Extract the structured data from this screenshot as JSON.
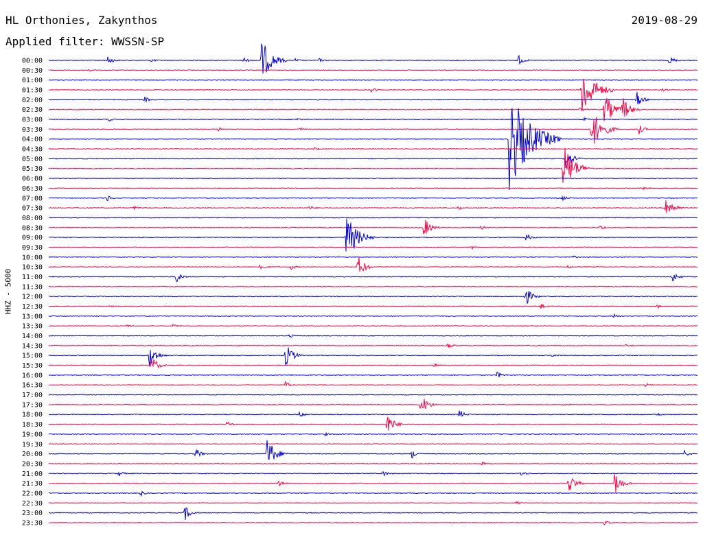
{
  "header": {
    "station": "HL Orthonies, Zakynthos",
    "date": "2019-08-29",
    "filter": "Applied filter: WWSSN-SP",
    "channel": "HHZ - 5000"
  },
  "colors": {
    "trace_a": "#0000e0",
    "trace_b": "#ff0044"
  },
  "chart_data": {
    "type": "line",
    "title": "HL Orthonies, Zakynthos",
    "date": "2019-08-29",
    "ylabel": "HHZ - 5000",
    "row_labels": [
      "00:00",
      "00:30",
      "01:00",
      "01:30",
      "02:00",
      "02:30",
      "03:00",
      "03:30",
      "04:00",
      "04:30",
      "05:00",
      "05:30",
      "06:00",
      "06:30",
      "07:00",
      "07:30",
      "08:00",
      "08:30",
      "09:00",
      "09:30",
      "10:00",
      "10:30",
      "11:00",
      "11:30",
      "12:00",
      "12:30",
      "13:00",
      "13:30",
      "14:00",
      "14:30",
      "15:00",
      "15:30",
      "16:00",
      "16:30",
      "17:00",
      "17:30",
      "18:00",
      "18:30",
      "19:00",
      "19:30",
      "20:00",
      "20:30",
      "21:00",
      "21:30",
      "22:00",
      "22:30",
      "23:00",
      "23:30"
    ],
    "trace_colors": [
      "#0000e0",
      "#ff0044"
    ],
    "events": [
      {
        "row": 0,
        "min": 5.5,
        "amp": 0.5
      },
      {
        "row": 0,
        "min": 9.5,
        "amp": 0.2
      },
      {
        "row": 0,
        "min": 18,
        "amp": 0.35
      },
      {
        "row": 0,
        "min": 19.7,
        "amp": 2.2
      },
      {
        "row": 0,
        "min": 22.8,
        "amp": 0.2
      },
      {
        "row": 0,
        "min": 25,
        "amp": 0.2
      },
      {
        "row": 0,
        "min": 43.4,
        "amp": 0.6
      },
      {
        "row": 0,
        "min": 57.4,
        "amp": 0.5
      },
      {
        "row": 1,
        "min": 3.7,
        "amp": 0.2
      },
      {
        "row": 3,
        "min": 29.8,
        "amp": 0.4
      },
      {
        "row": 3,
        "min": 49.3,
        "amp": 3.0
      },
      {
        "row": 3,
        "min": 56.8,
        "amp": 0.2
      },
      {
        "row": 4,
        "min": 8.9,
        "amp": 0.3
      },
      {
        "row": 4,
        "min": 54.4,
        "amp": 0.8
      },
      {
        "row": 5,
        "min": 49.1,
        "amp": 0.3
      },
      {
        "row": 5,
        "min": 51.4,
        "amp": 1.8
      },
      {
        "row": 5,
        "min": 53.1,
        "amp": 1.3
      },
      {
        "row": 6,
        "min": 5.6,
        "amp": 0.2
      },
      {
        "row": 6,
        "min": 23,
        "amp": 0.15
      },
      {
        "row": 6,
        "min": 49.5,
        "amp": 0.2
      },
      {
        "row": 7,
        "min": 15.7,
        "amp": 0.25
      },
      {
        "row": 7,
        "min": 23.2,
        "amp": 0.2
      },
      {
        "row": 7,
        "min": 50.2,
        "amp": 2.3
      },
      {
        "row": 7,
        "min": 54.6,
        "amp": 0.5
      },
      {
        "row": 8,
        "min": 42.6,
        "amp": 5.5
      },
      {
        "row": 9,
        "min": 24.6,
        "amp": 0.15
      },
      {
        "row": 10,
        "min": 47.8,
        "amp": 1.2
      },
      {
        "row": 11,
        "min": 47.6,
        "amp": 2.6
      },
      {
        "row": 13,
        "min": 55,
        "amp": 0.2
      },
      {
        "row": 14,
        "min": 5.4,
        "amp": 0.35
      },
      {
        "row": 14,
        "min": 47.5,
        "amp": 0.3
      },
      {
        "row": 15,
        "min": 7.9,
        "amp": 0.2
      },
      {
        "row": 15,
        "min": 24.1,
        "amp": 0.25
      },
      {
        "row": 15,
        "min": 37.9,
        "amp": 0.2
      },
      {
        "row": 15,
        "min": 57.1,
        "amp": 1.3
      },
      {
        "row": 17,
        "min": 34.7,
        "amp": 1.1
      },
      {
        "row": 17,
        "min": 40,
        "amp": 0.2
      },
      {
        "row": 17,
        "min": 51,
        "amp": 0.3
      },
      {
        "row": 18,
        "min": 27.5,
        "amp": 2.6
      },
      {
        "row": 18,
        "min": 44.1,
        "amp": 0.5
      },
      {
        "row": 19,
        "min": 39.1,
        "amp": 0.2
      },
      {
        "row": 20,
        "min": 48.5,
        "amp": 0.15
      },
      {
        "row": 21,
        "min": 19.5,
        "amp": 0.45
      },
      {
        "row": 21,
        "min": 22.4,
        "amp": 0.35
      },
      {
        "row": 21,
        "min": 28.6,
        "amp": 1.2
      },
      {
        "row": 21,
        "min": 48,
        "amp": 0.2
      },
      {
        "row": 22,
        "min": 11.8,
        "amp": 0.6
      },
      {
        "row": 22,
        "min": 57.7,
        "amp": 0.6
      },
      {
        "row": 24,
        "min": 44.1,
        "amp": 1.0
      },
      {
        "row": 25,
        "min": 5.6,
        "amp": 0.15
      },
      {
        "row": 25,
        "min": 45.5,
        "amp": 0.3
      },
      {
        "row": 25,
        "min": 56.3,
        "amp": 0.2
      },
      {
        "row": 26,
        "min": 52.3,
        "amp": 0.2
      },
      {
        "row": 27,
        "min": 7.2,
        "amp": 0.2
      },
      {
        "row": 27,
        "min": 11.5,
        "amp": 0.2
      },
      {
        "row": 28,
        "min": 22.3,
        "amp": 0.2
      },
      {
        "row": 29,
        "min": 36.9,
        "amp": 0.4
      },
      {
        "row": 29,
        "min": 53.4,
        "amp": 0.2
      },
      {
        "row": 30,
        "min": 9.3,
        "amp": 1.3
      },
      {
        "row": 30,
        "min": 21.9,
        "amp": 1.3
      },
      {
        "row": 30,
        "min": 46.6,
        "amp": 0.2
      },
      {
        "row": 31,
        "min": 9.5,
        "amp": 1.0
      },
      {
        "row": 31,
        "min": 35.6,
        "amp": 0.2
      },
      {
        "row": 32,
        "min": 41.5,
        "amp": 0.4
      },
      {
        "row": 33,
        "min": 21.9,
        "amp": 0.4
      },
      {
        "row": 33,
        "min": 55.2,
        "amp": 0.2
      },
      {
        "row": 35,
        "min": 34.4,
        "amp": 1.2
      },
      {
        "row": 35,
        "min": 47.5,
        "amp": 0.2
      },
      {
        "row": 36,
        "min": 23.2,
        "amp": 0.35
      },
      {
        "row": 36,
        "min": 38,
        "amp": 0.5
      },
      {
        "row": 36,
        "min": 56.3,
        "amp": 0.2
      },
      {
        "row": 37,
        "min": 16.5,
        "amp": 0.3
      },
      {
        "row": 37,
        "min": 31.3,
        "amp": 1.2
      },
      {
        "row": 38,
        "min": 25.6,
        "amp": 0.15
      },
      {
        "row": 40,
        "min": 13.6,
        "amp": 0.6
      },
      {
        "row": 40,
        "min": 20.2,
        "amp": 1.7
      },
      {
        "row": 40,
        "min": 33.6,
        "amp": 0.5
      },
      {
        "row": 40,
        "min": 58.8,
        "amp": 0.4
      },
      {
        "row": 41,
        "min": 40.1,
        "amp": 0.2
      },
      {
        "row": 42,
        "min": 6.5,
        "amp": 0.3
      },
      {
        "row": 42,
        "min": 30.9,
        "amp": 0.4
      },
      {
        "row": 42,
        "min": 43.7,
        "amp": 0.3
      },
      {
        "row": 43,
        "min": 21.3,
        "amp": 0.3
      },
      {
        "row": 43,
        "min": 48.1,
        "amp": 1.1
      },
      {
        "row": 43,
        "min": 52.3,
        "amp": 1.3
      },
      {
        "row": 44,
        "min": 8.5,
        "amp": 0.3
      },
      {
        "row": 45,
        "min": 43.3,
        "amp": 0.2
      },
      {
        "row": 46,
        "min": 12.6,
        "amp": 0.8
      },
      {
        "row": 47,
        "min": 51.4,
        "amp": 0.3
      }
    ]
  }
}
